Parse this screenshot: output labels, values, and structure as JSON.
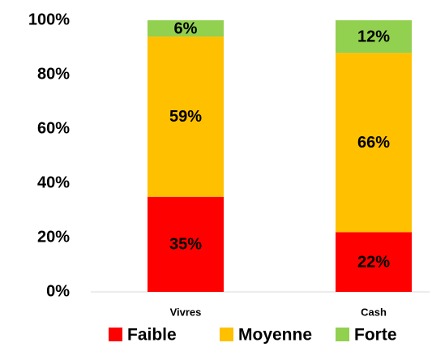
{
  "chart_data": {
    "type": "stacked_bar",
    "categories": [
      "Vivres",
      "Cash"
    ],
    "series": [
      {
        "name": "Faible",
        "color": "#ff0000",
        "values": [
          35,
          22
        ],
        "value_labels": [
          "35%",
          "22%"
        ]
      },
      {
        "name": "Moyenne",
        "color": "#ffc000",
        "values": [
          59,
          66
        ],
        "value_labels": [
          "59%",
          "66%"
        ]
      },
      {
        "name": "Forte",
        "color": "#92d050",
        "values": [
          6,
          12
        ],
        "value_labels": [
          "6%",
          "12%"
        ]
      }
    ],
    "ylim": [
      0,
      100
    ],
    "yticks": [
      {
        "value": 0,
        "label": "0%"
      },
      {
        "value": 20,
        "label": "20%"
      },
      {
        "value": 40,
        "label": "40%"
      },
      {
        "value": 60,
        "label": "60%"
      },
      {
        "value": 80,
        "label": "80%"
      },
      {
        "value": 100,
        "label": "100%"
      }
    ],
    "legend": "bottom"
  }
}
